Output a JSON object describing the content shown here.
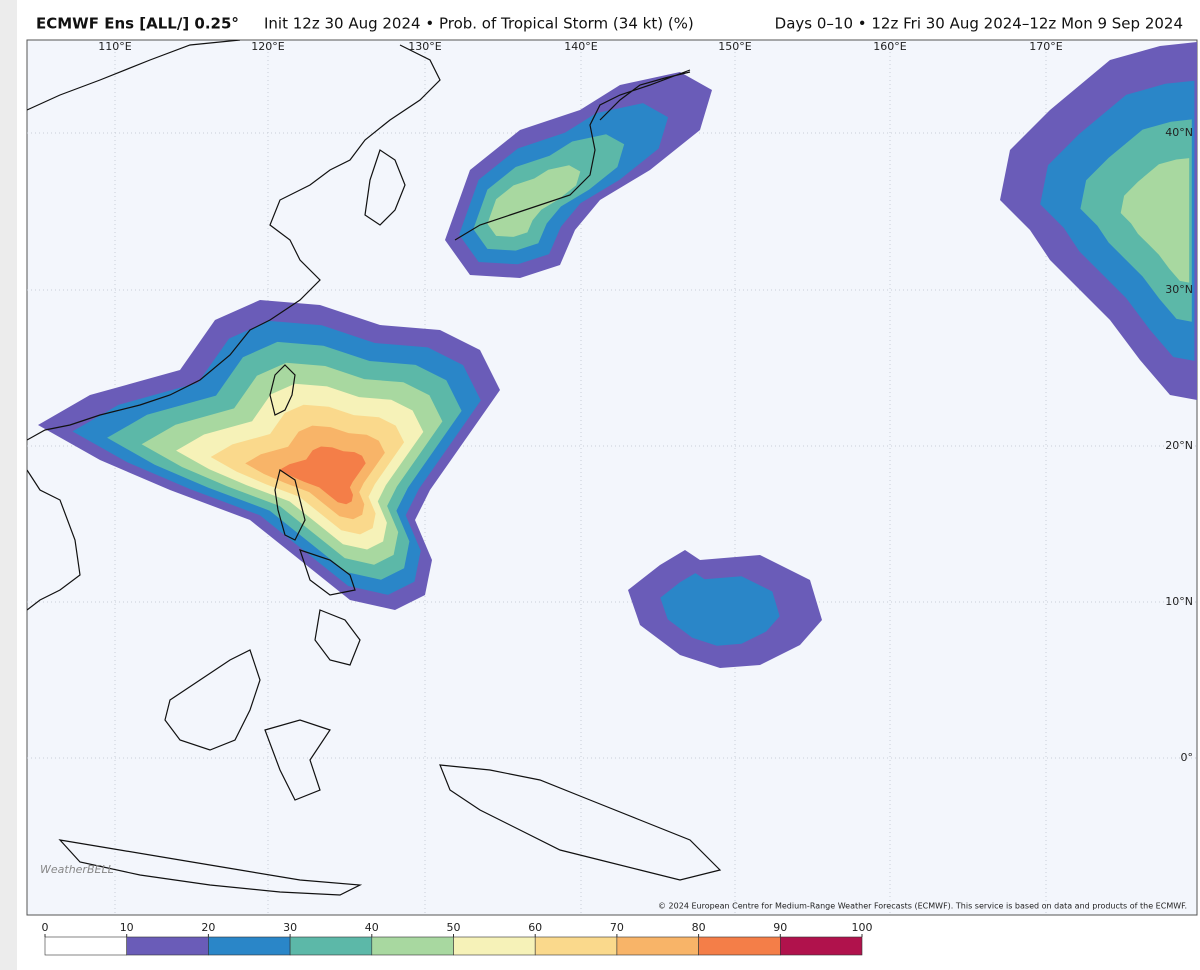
{
  "header": {
    "title": "ECMWF Ens [ALL/] 0.25°",
    "subtitle": "Init 12z 30 Aug 2024 • Prob. of Tropical Storm (34 kt) (%)",
    "valid": "Days 0–10 • 12z Fri 30 Aug 2024–12z Mon 9 Sep 2024"
  },
  "map": {
    "lon_labels": [
      "110°E",
      "120°E",
      "130°E",
      "140°E",
      "150°E",
      "160°E",
      "170°E"
    ],
    "lat_labels": [
      "40°N",
      "30°N",
      "20°N",
      "10°N",
      "0°"
    ],
    "copyright": "© 2024 European Centre for Medium-Range Weather Forecasts (ECMWF). This service is based on data and products of the ECMWF.",
    "watermark": "WeatherBELL"
  },
  "colorbar": {
    "ticks": [
      0,
      10,
      20,
      30,
      40,
      50,
      60,
      70,
      80,
      90,
      100
    ],
    "colors": [
      "#ffffff",
      "#6a5cb8",
      "#2a86c8",
      "#5cb8a8",
      "#a8d8a0",
      "#f6f2b8",
      "#fad98c",
      "#f8b468",
      "#f47e48",
      "#b0124c"
    ]
  }
}
